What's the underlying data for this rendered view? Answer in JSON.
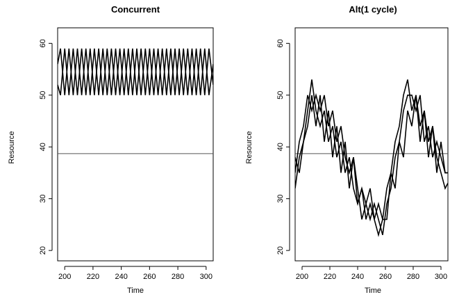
{
  "chart_data": [
    {
      "type": "line",
      "title": "Concurrent",
      "xlabel": "Time",
      "ylabel": "Resource",
      "xlim": [
        195,
        305
      ],
      "ylim": [
        18,
        63
      ],
      "xticks": [
        200,
        220,
        240,
        260,
        280,
        300
      ],
      "yticks": [
        20,
        30,
        40,
        50,
        60
      ],
      "reference_line": {
        "y": 38.7
      },
      "series": [
        {
          "x": [
            195,
            197,
            200,
            203,
            206,
            209,
            212,
            215,
            218,
            221,
            224,
            227,
            230,
            233,
            236,
            239,
            242,
            245,
            248,
            251,
            254,
            257,
            260,
            263,
            266,
            269,
            272,
            275,
            278,
            281,
            284,
            287,
            290,
            293,
            296,
            299,
            302,
            305
          ],
          "values": [
            56,
            59,
            50,
            59,
            50,
            59,
            50,
            59,
            50,
            59,
            50,
            59,
            50,
            59,
            50,
            59,
            50,
            59,
            50,
            59,
            50,
            59,
            50,
            59,
            50,
            59,
            50,
            59,
            50,
            59,
            50,
            59,
            50,
            59,
            50,
            59,
            50,
            56
          ]
        },
        {
          "x": [
            195,
            197,
            200,
            203,
            206,
            209,
            212,
            215,
            218,
            221,
            224,
            227,
            230,
            233,
            236,
            239,
            242,
            245,
            248,
            251,
            254,
            257,
            260,
            263,
            266,
            269,
            272,
            275,
            278,
            281,
            284,
            287,
            290,
            293,
            296,
            299,
            302,
            305
          ],
          "values": [
            52,
            50,
            59,
            50,
            59,
            50,
            59,
            50,
            59,
            50,
            59,
            50,
            59,
            50,
            59,
            50,
            59,
            50,
            59,
            50,
            59,
            50,
            59,
            50,
            59,
            50,
            59,
            50,
            59,
            50,
            59,
            50,
            59,
            50,
            59,
            50,
            59,
            52
          ]
        }
      ]
    },
    {
      "type": "line",
      "title": "Alt(1 cycle)",
      "xlabel": "Time",
      "ylabel": "Resource",
      "xlim": [
        195,
        305
      ],
      "ylim": [
        18,
        63
      ],
      "xticks": [
        200,
        220,
        240,
        260,
        280,
        300
      ],
      "yticks": [
        20,
        30,
        40,
        50,
        60
      ],
      "reference_line": {
        "y": 38.7
      },
      "series": [
        {
          "x": [
            195,
            198,
            201,
            204,
            207,
            210,
            213,
            216,
            219,
            222,
            225,
            228,
            231,
            234,
            237,
            240,
            243,
            246,
            249,
            252,
            255,
            258,
            261,
            264,
            267,
            270,
            273,
            276,
            279,
            282,
            285,
            288,
            291,
            294,
            297,
            300,
            303,
            305
          ],
          "values": [
            32,
            38,
            41,
            47,
            53,
            47,
            44,
            47,
            41,
            44,
            38,
            41,
            35,
            38,
            32,
            29,
            32,
            26,
            29,
            26,
            23,
            26,
            32,
            35,
            41,
            44,
            50,
            53,
            47,
            50,
            44,
            47,
            41,
            44,
            38,
            35,
            32,
            33
          ]
        },
        {
          "x": [
            195,
            198,
            201,
            204,
            207,
            210,
            213,
            216,
            219,
            222,
            225,
            228,
            231,
            234,
            237,
            240,
            243,
            246,
            249,
            252,
            255,
            258,
            261,
            264,
            267,
            270,
            273,
            276,
            279,
            282,
            285,
            288,
            291,
            294,
            297,
            300,
            303,
            305
          ],
          "values": [
            35,
            41,
            44,
            50,
            47,
            50,
            47,
            50,
            44,
            47,
            41,
            44,
            38,
            35,
            38,
            32,
            26,
            29,
            26,
            29,
            26,
            23,
            29,
            32,
            38,
            41,
            47,
            50,
            50,
            47,
            50,
            41,
            44,
            38,
            41,
            38,
            35,
            35
          ]
        },
        {
          "x": [
            195,
            198,
            201,
            204,
            207,
            210,
            213,
            216,
            219,
            222,
            225,
            228,
            231,
            234,
            237,
            240,
            243,
            246,
            249,
            252,
            255,
            258,
            261,
            264,
            267,
            270,
            273,
            276,
            279,
            282,
            285,
            288,
            291,
            294,
            297,
            300,
            303,
            305
          ],
          "values": [
            38,
            35,
            41,
            44,
            50,
            44,
            50,
            41,
            47,
            38,
            44,
            35,
            41,
            32,
            38,
            29,
            32,
            29,
            32,
            26,
            29,
            26,
            26,
            35,
            32,
            41,
            38,
            47,
            44,
            50,
            41,
            47,
            38,
            44,
            35,
            41,
            35,
            35
          ]
        }
      ]
    }
  ]
}
